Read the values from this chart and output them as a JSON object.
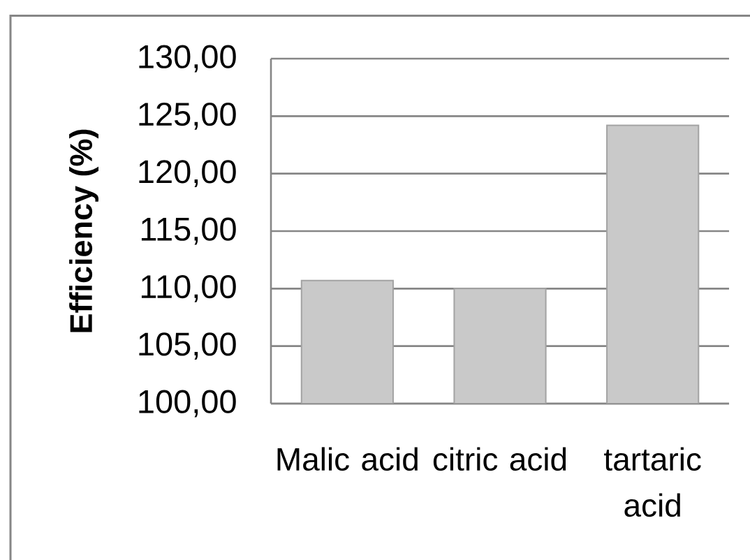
{
  "chart_data": {
    "type": "bar",
    "ylabel": "Efficiency (%)",
    "categories": [
      "Malic acid",
      "citric acid",
      "tartaric acid"
    ],
    "values": [
      110.7,
      110.0,
      124.2
    ],
    "color": "#c9c9c9",
    "ylim": [
      100,
      130
    ],
    "yticks": [
      {
        "value": 100,
        "label": "100,00"
      },
      {
        "value": 105,
        "label": "105,00"
      },
      {
        "value": 110,
        "label": "110,00"
      },
      {
        "value": 115,
        "label": "115,00"
      },
      {
        "value": 120,
        "label": "120,00"
      },
      {
        "value": 125,
        "label": "125,00"
      },
      {
        "value": 130,
        "label": "130,00"
      }
    ],
    "grid": "y"
  }
}
